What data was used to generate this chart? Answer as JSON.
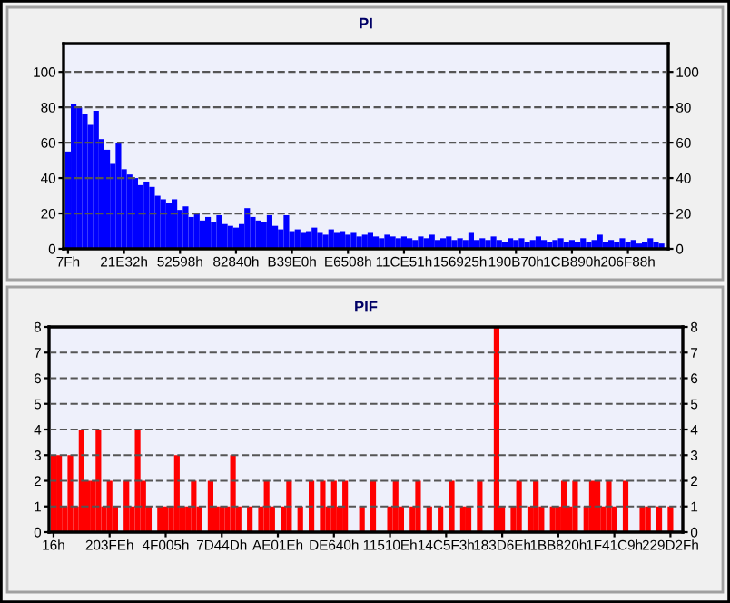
{
  "chart_data": [
    {
      "type": "bar",
      "title": "PI",
      "categories": [
        "7Fh",
        null,
        null,
        null,
        null,
        null,
        null,
        null,
        null,
        null,
        "21E32h",
        null,
        null,
        null,
        null,
        null,
        null,
        null,
        null,
        null,
        "52598h",
        null,
        null,
        null,
        null,
        null,
        null,
        null,
        null,
        null,
        "82840h",
        null,
        null,
        null,
        null,
        null,
        null,
        null,
        null,
        null,
        "B39E0h",
        null,
        null,
        null,
        null,
        null,
        null,
        null,
        null,
        null,
        "E6508h",
        null,
        null,
        null,
        null,
        null,
        null,
        null,
        null,
        null,
        "11CE51h",
        null,
        null,
        null,
        null,
        null,
        null,
        null,
        null,
        null,
        "156925h",
        null,
        null,
        null,
        null,
        null,
        null,
        null,
        null,
        null,
        "190B70h",
        null,
        null,
        null,
        null,
        null,
        null,
        null,
        null,
        null,
        "1CB890h",
        null,
        null,
        null,
        null,
        null,
        null,
        null,
        null,
        null,
        "206F88h",
        null,
        null,
        null,
        null,
        null,
        null
      ],
      "values": [
        55,
        82,
        80,
        76,
        70,
        78,
        62,
        56,
        48,
        60,
        45,
        42,
        40,
        36,
        38,
        35,
        30,
        28,
        26,
        28,
        22,
        24,
        18,
        20,
        16,
        18,
        15,
        19,
        14,
        13,
        12,
        14,
        23,
        18,
        16,
        15,
        19,
        13,
        11,
        19,
        10,
        11,
        9,
        10,
        12,
        9,
        8,
        11,
        9,
        10,
        8,
        9,
        7,
        8,
        9,
        7,
        6,
        8,
        7,
        6,
        7,
        6,
        5,
        7,
        6,
        8,
        5,
        6,
        7,
        5,
        6,
        5,
        9,
        5,
        6,
        5,
        7,
        5,
        4,
        6,
        5,
        6,
        4,
        5,
        7,
        5,
        4,
        5,
        6,
        4,
        5,
        4,
        6,
        4,
        5,
        8,
        4,
        5,
        4,
        6,
        4,
        5,
        3,
        4,
        6,
        4,
        3
      ],
      "color": "#0000ff",
      "ylim": [
        0,
        116
      ],
      "yticks": [
        0,
        20,
        40,
        60,
        80,
        100
      ],
      "y2lim": [
        0,
        116
      ],
      "y2ticks": [
        0,
        20,
        40,
        60,
        80,
        100
      ],
      "grid": "y",
      "line_style": "dashed"
    },
    {
      "type": "bar",
      "title": "PIF",
      "categories": [
        "16h",
        null,
        null,
        null,
        null,
        null,
        null,
        null,
        null,
        null,
        "203FEh",
        null,
        null,
        null,
        null,
        null,
        null,
        null,
        null,
        null,
        "4F005h",
        null,
        null,
        null,
        null,
        null,
        null,
        null,
        null,
        null,
        "7D44Dh",
        null,
        null,
        null,
        null,
        null,
        null,
        null,
        null,
        null,
        "AE01Eh",
        null,
        null,
        null,
        null,
        null,
        null,
        null,
        null,
        null,
        "DE640h",
        null,
        null,
        null,
        null,
        null,
        null,
        null,
        null,
        null,
        "11510Eh",
        null,
        null,
        null,
        null,
        null,
        null,
        null,
        null,
        null,
        "14C5F3h",
        null,
        null,
        null,
        null,
        null,
        null,
        null,
        null,
        null,
        "183D6Eh",
        null,
        null,
        null,
        null,
        null,
        null,
        null,
        null,
        null,
        "1BB820h",
        null,
        null,
        null,
        null,
        null,
        null,
        null,
        null,
        null,
        "1F41C9h",
        null,
        null,
        null,
        null,
        null,
        null,
        null,
        null,
        null,
        "229D2Fh",
        null
      ],
      "values": [
        3,
        3,
        1,
        3,
        1,
        4,
        2,
        2,
        4,
        1,
        2,
        1,
        0,
        2,
        1,
        4,
        2,
        1,
        0,
        1,
        1,
        1,
        3,
        1,
        1,
        2,
        1,
        0,
        2,
        1,
        1,
        1,
        3,
        1,
        0,
        1,
        0,
        1,
        2,
        1,
        0,
        1,
        2,
        0,
        1,
        0,
        2,
        0,
        2,
        1,
        2,
        1,
        2,
        0,
        0,
        1,
        0,
        2,
        0,
        0,
        1,
        2,
        1,
        0,
        1,
        2,
        0,
        1,
        0,
        1,
        0,
        2,
        0,
        1,
        1,
        0,
        2,
        0,
        0,
        8,
        1,
        0,
        1,
        2,
        0,
        1,
        2,
        1,
        0,
        1,
        1,
        2,
        1,
        2,
        0,
        1,
        2,
        2,
        1,
        2,
        1,
        0,
        2,
        0,
        0,
        1,
        1,
        0,
        1,
        0,
        1,
        0
      ],
      "color": "#ff0000",
      "ylim": [
        0,
        8
      ],
      "yticks": [
        0,
        1,
        2,
        3,
        4,
        5,
        6,
        7,
        8
      ],
      "y2lim": [
        0,
        8
      ],
      "y2ticks": [
        0,
        1,
        2,
        3,
        4,
        5,
        6,
        7,
        8
      ],
      "grid": "y",
      "line_style": "dashed"
    }
  ]
}
